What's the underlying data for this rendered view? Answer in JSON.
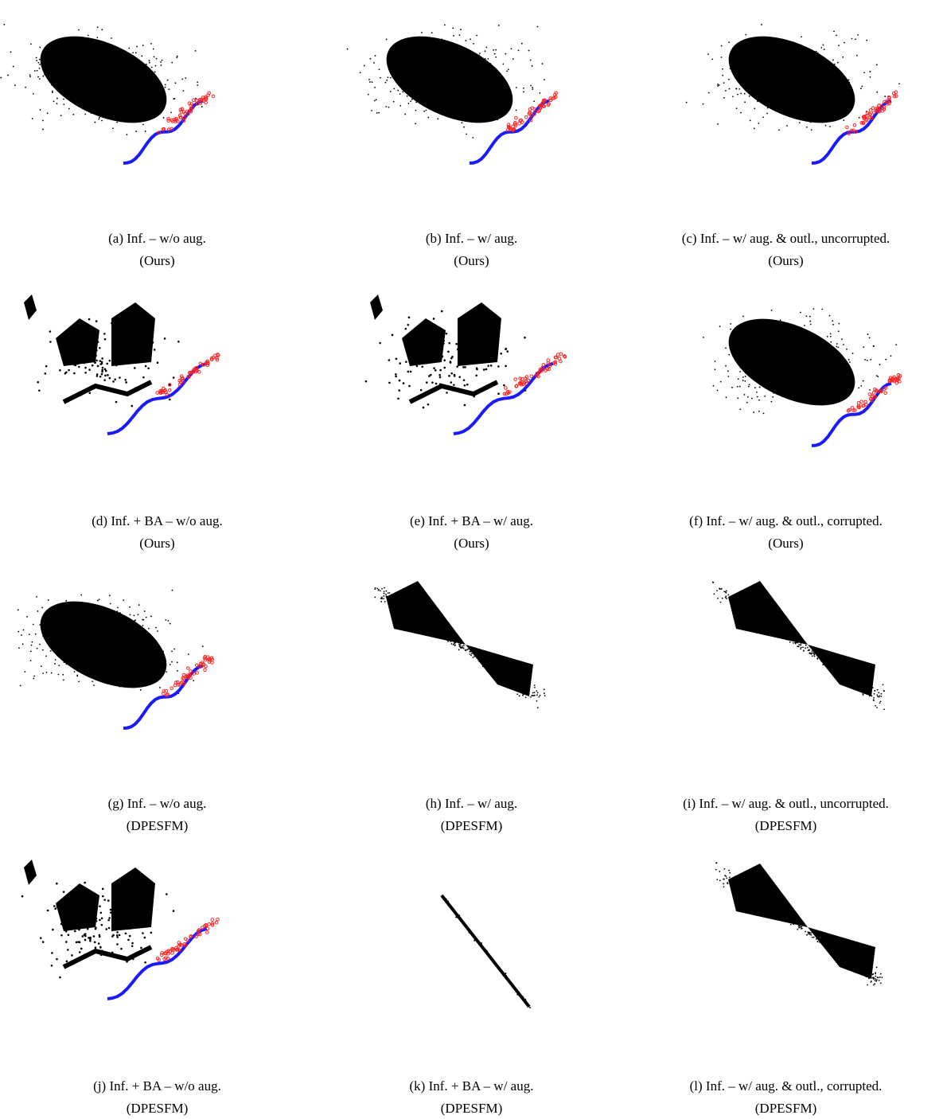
{
  "panels": [
    {
      "caption": "(a) Inf. – w/o aug.",
      "method": "(Ours)"
    },
    {
      "caption": "(b) Inf. – w/ aug.",
      "method": "(Ours)"
    },
    {
      "caption": "(c) Inf. – w/ aug. & outl., uncorrupted.",
      "method": "(Ours)"
    },
    {
      "caption": "(d) Inf. + BA – w/o aug.",
      "method": "(Ours)"
    },
    {
      "caption": "(e) Inf. + BA – w/ aug.",
      "method": "(Ours)"
    },
    {
      "caption": "(f) Inf. – w/ aug. & outl., corrupted.",
      "method": "(Ours)"
    },
    {
      "caption": "(g) Inf. – w/o aug.",
      "method": "(DPESFM)"
    },
    {
      "caption": "(h) Inf. – w/ aug.",
      "method": "(DPESFM)"
    },
    {
      "caption": "(i) Inf. – w/ aug. & outl., uncorrupted.",
      "method": "(DPESFM)"
    },
    {
      "caption": "(j) Inf. + BA – w/o aug.",
      "method": "(DPESFM)"
    },
    {
      "caption": "(k) Inf. + BA – w/ aug.",
      "method": "(DPESFM)"
    },
    {
      "caption": "(l) Inf. – w/ aug. & outl., corrupted.",
      "method": "(DPESFM)"
    }
  ]
}
